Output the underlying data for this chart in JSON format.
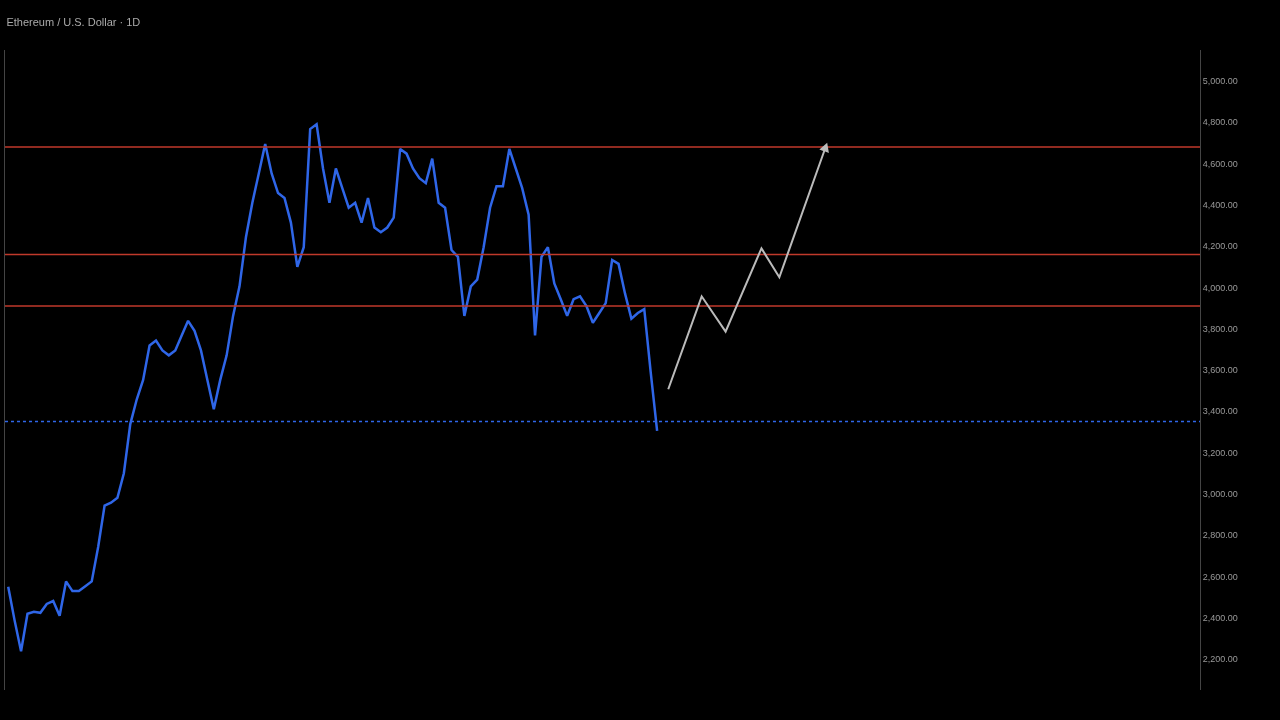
{
  "chart_data": {
    "type": "line",
    "title": "Ethereum / U.S. Dollar · 1D",
    "categories": [
      null,
      null,
      null,
      null,
      null,
      null,
      null,
      null,
      null,
      null,
      null,
      null,
      null,
      null,
      null,
      null,
      null,
      null,
      null,
      null,
      null,
      null,
      null,
      null,
      null,
      null,
      null,
      null,
      null,
      null,
      null,
      null,
      null,
      null,
      null,
      null,
      null,
      null,
      null,
      null,
      null,
      null,
      null,
      null,
      null,
      null,
      null,
      null,
      null,
      null,
      null,
      null,
      null,
      null,
      null,
      null,
      null,
      null,
      null,
      null,
      null,
      null,
      null,
      null,
      null,
      null,
      null,
      null,
      null,
      null,
      null,
      null,
      null,
      null,
      null,
      null,
      null,
      null,
      null,
      null,
      null,
      null,
      null,
      null,
      null,
      null,
      null,
      null,
      null,
      null,
      null,
      null,
      null,
      null,
      null,
      null,
      null,
      null,
      null,
      null,
      null,
      null,
      null,
      null,
      null,
      null,
      null,
      null,
      null,
      null,
      null,
      null,
      null,
      null,
      null,
      null,
      null,
      null,
      null,
      null,
      null,
      null,
      null,
      null,
      null,
      null,
      null,
      null,
      null,
      null,
      null,
      null,
      null,
      null,
      null,
      null,
      null,
      null,
      null,
      null,
      null,
      null,
      null,
      null,
      null,
      null,
      null,
      null,
      null,
      null,
      null,
      null,
      null,
      null,
      null,
      null,
      null,
      null,
      null,
      null,
      null,
      null,
      null,
      null,
      null,
      null,
      null,
      null,
      null,
      null,
      null,
      null,
      null,
      null,
      null,
      null,
      null,
      null,
      null,
      null,
      null,
      null,
      null,
      null,
      null,
      null
    ],
    "series": [
      {
        "color": "#2f66e8",
        "values": [
          2550,
          2386,
          2238,
          2419,
          2429,
          2424,
          2467,
          2481,
          2410,
          2576,
          2529,
          2529,
          2552,
          2576,
          2743,
          2943,
          2957,
          2981,
          3100,
          3338,
          3457,
          3552,
          3719,
          3743,
          3695,
          3671,
          3695,
          3767,
          3838,
          3790,
          3695,
          3552,
          3410,
          3552,
          3671,
          3862,
          4005,
          4243,
          4410,
          4552,
          4695,
          4552,
          4457,
          4433,
          4314,
          4100,
          4195,
          4767,
          4790,
          4576,
          4410,
          4576,
          4481,
          4386,
          4410,
          4314,
          4433,
          4290,
          4267,
          4290,
          4338,
          4671,
          4648,
          4576,
          4529,
          4505,
          4624,
          4410,
          4386,
          4181,
          4148,
          3862,
          4005,
          4038,
          4195,
          4386,
          4490,
          4490,
          4671,
          4576,
          4481,
          4352,
          3767,
          4148,
          4195,
          4019,
          3943,
          3862,
          3943,
          3957,
          3910,
          3829,
          3876,
          3924,
          4133,
          4114,
          3971,
          3848,
          3876,
          3895,
          3590,
          3305,
          null,
          null,
          null,
          null,
          null,
          null,
          null,
          null,
          null,
          null,
          null,
          null,
          null,
          null,
          null,
          null,
          null,
          null,
          null,
          null,
          null,
          null,
          null,
          null,
          null,
          null,
          null,
          null,
          null,
          null,
          null,
          null,
          null,
          null,
          null,
          null,
          null,
          null,
          null,
          null,
          null,
          null,
          null,
          null,
          null,
          null,
          null,
          null,
          null,
          null,
          null,
          null,
          null,
          null,
          null,
          null,
          null,
          null,
          null,
          null,
          null,
          null,
          null,
          null,
          null,
          null,
          null,
          null,
          null,
          null,
          null,
          null,
          null,
          null,
          null,
          null,
          null,
          null,
          null,
          null,
          null,
          null,
          null,
          null
        ]
      }
    ],
    "ylim": [
      2050,
      5150
    ],
    "yticks": [
      {
        "value": 2200,
        "label": "2,200.00"
      },
      {
        "value": 2400,
        "label": "2,400.00"
      },
      {
        "value": 2600,
        "label": "2,600.00"
      },
      {
        "value": 2800,
        "label": "2,800.00"
      },
      {
        "value": 3000,
        "label": "3,000.00"
      },
      {
        "value": 3200,
        "label": "3,200.00"
      },
      {
        "value": 3400,
        "label": "3,400.00"
      },
      {
        "value": 3600,
        "label": "3,600.00"
      },
      {
        "value": 3800,
        "label": "3,800.00"
      },
      {
        "value": 4000,
        "label": "4,000.00"
      },
      {
        "value": 4200,
        "label": "4,200.00"
      },
      {
        "value": 4400,
        "label": "4,400.00"
      },
      {
        "value": 4600,
        "label": "4,600.00"
      },
      {
        "value": 4800,
        "label": "4,800.00"
      },
      {
        "value": 5000,
        "label": "5,000.00"
      }
    ],
    "tick_labels": "y",
    "grid": false,
    "ref_lines": [
      {
        "axis": "y",
        "value": 4680,
        "color": "#c0392b",
        "line_style": "solid"
      },
      {
        "axis": "y",
        "value": 4160,
        "color": "#c0392b",
        "line_style": "solid"
      },
      {
        "axis": "y",
        "value": 3910,
        "color": "#c0392b",
        "line_style": "solid"
      },
      {
        "axis": "y",
        "value": 3350,
        "color": "#2f66e8",
        "line_style": "dotted"
      }
    ]
  }
}
